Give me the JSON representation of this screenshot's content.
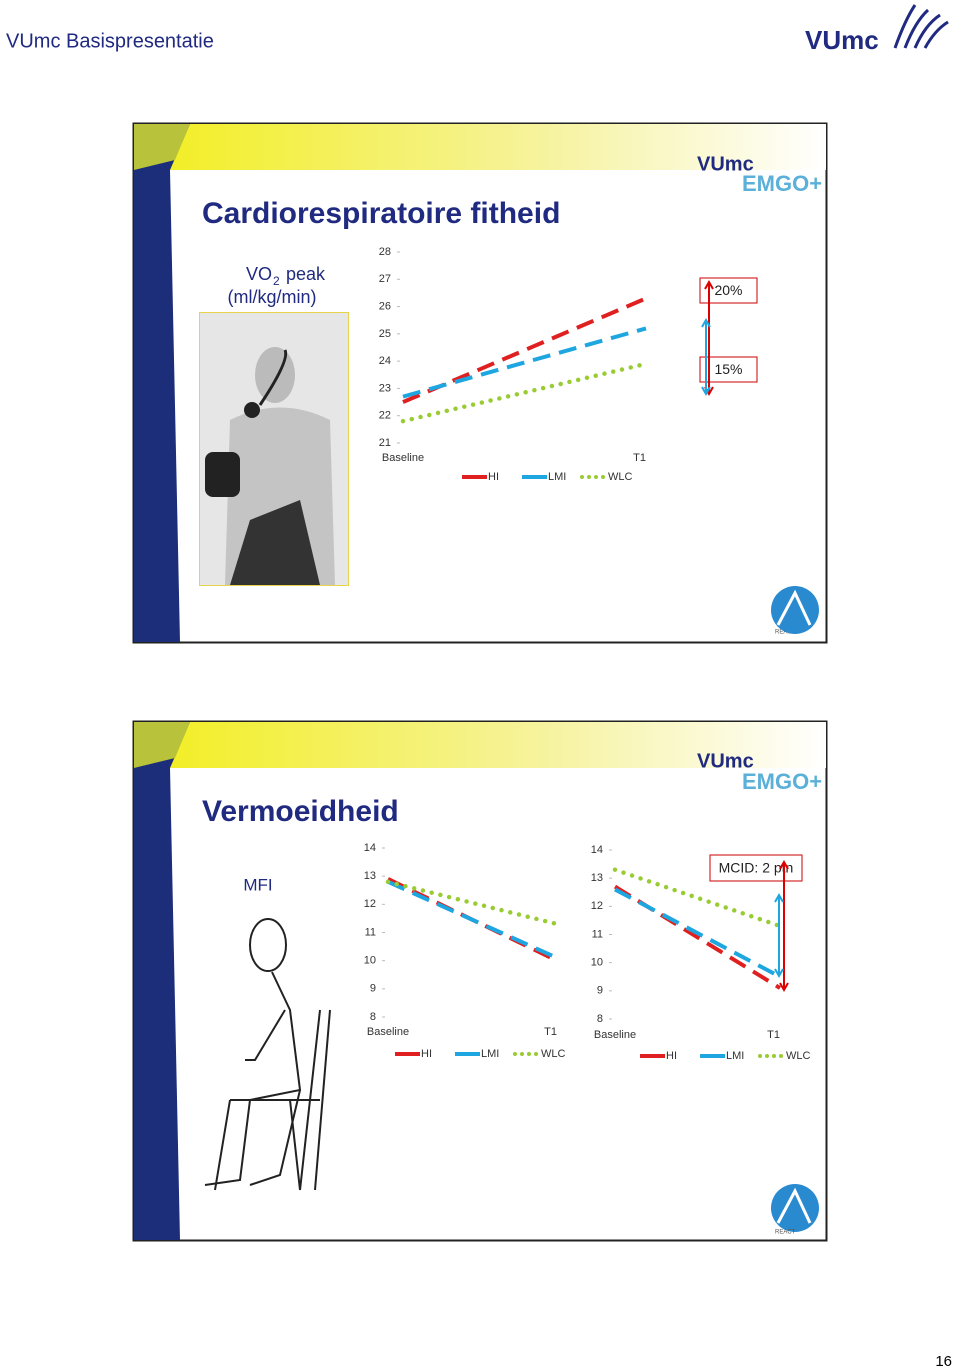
{
  "header": {
    "title": "VUmc Basispresentatie",
    "logo": "VUmc",
    "page_number": "16"
  },
  "slides": [
    {
      "title": "Cardiorespiratoire fitheid",
      "logo": "VUmc",
      "logo2": "EMGO+",
      "badge": "REACT",
      "label": {
        "main": "VO",
        "sub": "2",
        "rest": " peak",
        "unit": "(ml/kg/min)"
      }
    },
    {
      "title": "Vermoeidheid",
      "logo": "VUmc",
      "logo2": "EMGO+",
      "badge": "REACT",
      "label": {
        "main": "MFI"
      }
    }
  ],
  "chart_data": [
    {
      "type": "line",
      "categories": [
        "Baseline",
        "T1"
      ],
      "series": [
        {
          "name": "HI",
          "color": "#e02020",
          "line_style": "dash",
          "values": [
            22.5,
            26.3
          ]
        },
        {
          "name": "LMI",
          "color": "#1ea6e0",
          "line_style": "dash",
          "values": [
            22.7,
            25.2
          ]
        },
        {
          "name": "WLC",
          "color": "#99cc33",
          "line_style": "dot",
          "values": [
            21.8,
            23.9
          ]
        }
      ],
      "ylim": [
        21,
        28
      ],
      "yticks": [
        21,
        22,
        23,
        24,
        25,
        26,
        27,
        28
      ],
      "annotations": [
        "20%",
        "15%"
      ]
    },
    {
      "type": "line",
      "categories": [
        "Baseline",
        "T1"
      ],
      "series": [
        {
          "name": "HI",
          "color": "#e02020",
          "line_style": "dash",
          "values": [
            12.9,
            10.0
          ]
        },
        {
          "name": "LMI",
          "color": "#1ea6e0",
          "line_style": "dash",
          "values": [
            12.8,
            10.1
          ]
        },
        {
          "name": "WLC",
          "color": "#99cc33",
          "line_style": "dot",
          "values": [
            12.8,
            11.3
          ]
        }
      ],
      "ylim": [
        8,
        14
      ],
      "yticks": [
        8,
        9,
        10,
        11,
        12,
        13,
        14
      ]
    },
    {
      "type": "line",
      "categories": [
        "Baseline",
        "T1"
      ],
      "series": [
        {
          "name": "HI",
          "color": "#e02020",
          "line_style": "dash",
          "values": [
            12.7,
            9.1
          ]
        },
        {
          "name": "LMI",
          "color": "#1ea6e0",
          "line_style": "dash",
          "values": [
            12.6,
            9.5
          ]
        },
        {
          "name": "WLC",
          "color": "#99cc33",
          "line_style": "dot",
          "values": [
            13.3,
            11.3
          ]
        }
      ],
      "ylim": [
        8,
        14
      ],
      "yticks": [
        8,
        9,
        10,
        11,
        12,
        13,
        14
      ],
      "annotations": [
        "MCID: 2 ptn"
      ]
    }
  ]
}
